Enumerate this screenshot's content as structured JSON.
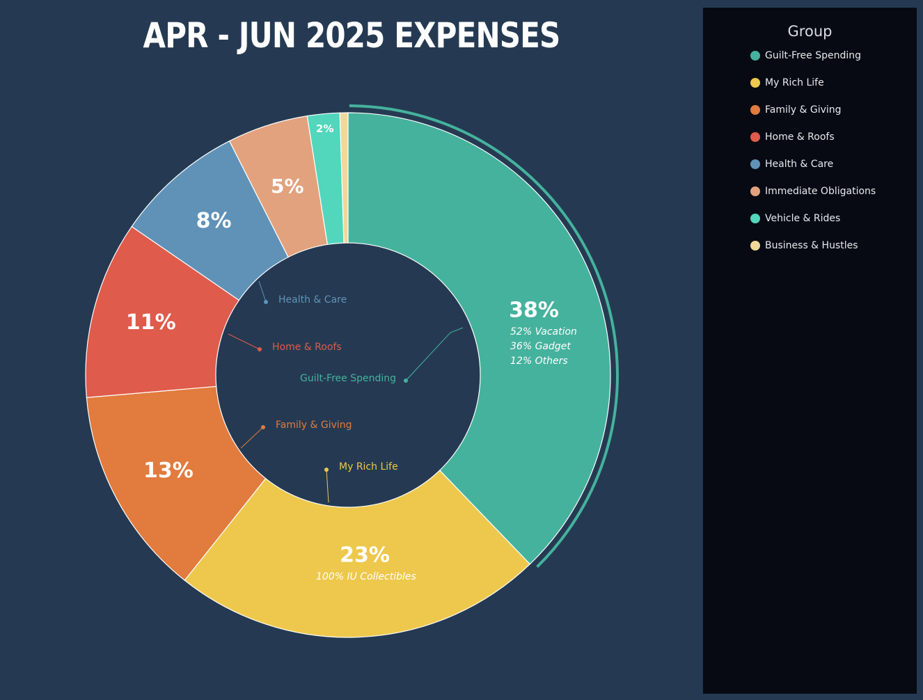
{
  "chart_data": {
    "type": "pie",
    "title": "APR - JUN 2025 EXPENSES",
    "legend": {
      "title": "Group",
      "placement": "right"
    },
    "slices": [
      {
        "name": "Guilt-Free Spending",
        "value": 38,
        "label": "38%",
        "color": "#45b29d",
        "highlighted": true,
        "details": [
          "52%  Vacation",
          "36%  Gadget",
          "12%   Others"
        ]
      },
      {
        "name": "My Rich Life",
        "value": 23,
        "label": "23%",
        "color": "#edc84c",
        "details": [
          "100%   IU Collectibles"
        ]
      },
      {
        "name": "Family & Giving",
        "value": 13,
        "label": "13%",
        "color": "#e17b3e",
        "details": []
      },
      {
        "name": "Home & Roofs",
        "value": 11,
        "label": "11%",
        "color": "#df5b4b",
        "details": []
      },
      {
        "name": "Health & Care",
        "value": 8,
        "label": "8%",
        "color": "#6092b8",
        "details": []
      },
      {
        "name": "Immediate Obligations",
        "value": 5,
        "label": "5%",
        "color": "#e2a27e",
        "details": []
      },
      {
        "name": "Vehicle & Rides",
        "value": 2,
        "label": "2%",
        "color": "#52d6bc",
        "details": []
      },
      {
        "name": "Business & Hustles",
        "value": 0.5,
        "label": "",
        "color": "#efd89a",
        "details": []
      }
    ],
    "inner_labels": [
      "Health & Care",
      "Home & Roofs",
      "Guilt-Free Spending",
      "Family & Giving",
      "My Rich Life"
    ]
  }
}
